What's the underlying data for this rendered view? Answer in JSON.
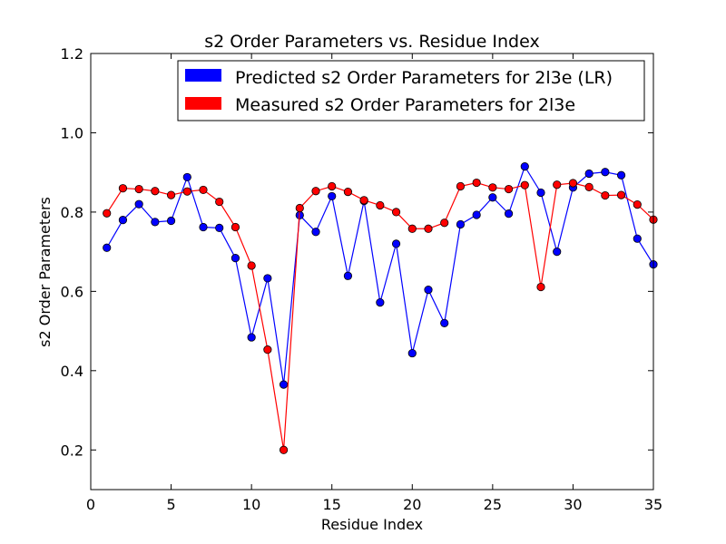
{
  "chart_data": {
    "type": "line",
    "title": "s2 Order Parameters vs. Residue Index",
    "xlabel": "Residue Index",
    "ylabel": "s2 Order Parameters",
    "xlim": [
      0,
      35
    ],
    "ylim": [
      0.1,
      1.2
    ],
    "xticks": [
      0,
      5,
      10,
      15,
      20,
      25,
      30,
      35
    ],
    "yticks": [
      0.2,
      0.4,
      0.6,
      0.8,
      1.0,
      1.2
    ],
    "xtick_labels": [
      "0",
      "5",
      "10",
      "15",
      "20",
      "25",
      "30",
      "35"
    ],
    "ytick_labels": [
      "0.2",
      "0.4",
      "0.6",
      "0.8",
      "1.0",
      "1.2"
    ],
    "grid": false,
    "legend_position": "top-right",
    "x": [
      1,
      2,
      3,
      4,
      5,
      6,
      7,
      8,
      9,
      10,
      11,
      12,
      13,
      14,
      15,
      16,
      17,
      18,
      19,
      20,
      21,
      22,
      23,
      24,
      25,
      26,
      27,
      28,
      29,
      30,
      31,
      32,
      33,
      34,
      35
    ],
    "series": [
      {
        "name": "Predicted s2 Order Parameters for 2l3e (LR)",
        "color": "#0000ff",
        "values": [
          0.71,
          0.78,
          0.82,
          0.775,
          0.778,
          0.888,
          0.762,
          0.76,
          0.684,
          0.484,
          0.633,
          0.365,
          0.792,
          0.75,
          0.84,
          0.639,
          0.828,
          0.572,
          0.72,
          0.444,
          0.604,
          0.52,
          0.769,
          0.793,
          0.837,
          0.796,
          0.915,
          0.849,
          0.7,
          0.862,
          0.897,
          0.901,
          0.893,
          0.733,
          0.668
        ]
      },
      {
        "name": "Measured s2 Order Parameters for 2l3e",
        "color": "#ff0000",
        "values": [
          0.797,
          0.86,
          0.858,
          0.853,
          0.843,
          0.852,
          0.856,
          0.826,
          0.762,
          0.665,
          0.453,
          0.2,
          0.81,
          0.853,
          0.865,
          0.851,
          0.83,
          0.817,
          0.8,
          0.758,
          0.758,
          0.773,
          0.865,
          0.874,
          0.862,
          0.858,
          0.868,
          0.611,
          0.869,
          0.873,
          0.863,
          0.842,
          0.843,
          0.819,
          0.781
        ]
      }
    ]
  }
}
